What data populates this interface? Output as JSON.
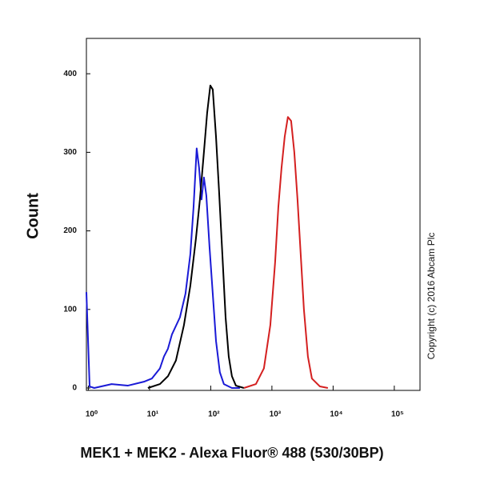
{
  "chart_data": {
    "type": "line",
    "x_label": "MEK1 + MEK2 - Alexa Fluor® 488 (530/30BP)",
    "y_label": "Count",
    "annotation": "Copyright (c) 2016 Abcam Plc",
    "x_scale": "log",
    "xlim": [
      0.93,
      263000
    ],
    "ylim": [
      0,
      445
    ],
    "xticks": [
      {
        "value": 1,
        "label": "10⁰"
      },
      {
        "value": 10,
        "label": "10¹"
      },
      {
        "value": 100,
        "label": "10²"
      },
      {
        "value": 1000,
        "label": "10³"
      },
      {
        "value": 10000,
        "label": "10⁴"
      },
      {
        "value": 100000,
        "label": "10⁵"
      }
    ],
    "yticks": [
      0,
      100,
      200,
      300,
      400
    ],
    "series": [
      {
        "color": "#1a1ad6",
        "x": [
          0.93,
          1.05,
          1.25,
          2.4,
          4.4,
          8.1,
          10.9,
          14.8,
          17.2,
          20,
          23.2,
          31.4,
          38.7,
          46.4,
          52.4,
          59,
          64.6,
          70.8,
          77.4,
          84.8,
          95.5,
          108,
          122,
          141,
          164,
          222,
          300
        ],
        "values": [
          122,
          2,
          0,
          5,
          3,
          8,
          12,
          25,
          40,
          50,
          68,
          90,
          120,
          170,
          230,
          305,
          280,
          240,
          268,
          245,
          180,
          120,
          60,
          20,
          5,
          0,
          0
        ]
      },
      {
        "color": "#000000",
        "x": [
          9.4,
          14.8,
          20,
          27,
          36.5,
          46.4,
          57.3,
          66.6,
          77.4,
          87.4,
          98.5,
          108,
          122,
          137,
          155,
          175,
          197,
          222,
          258,
          349
        ],
        "values": [
          0,
          5,
          15,
          35,
          80,
          130,
          190,
          240,
          300,
          350,
          385,
          380,
          320,
          250,
          170,
          90,
          40,
          15,
          3,
          0
        ]
      },
      {
        "color": "#d42020",
        "x": [
          349,
          548,
          740,
          942,
          1128,
          1273,
          1435,
          1619,
          1825,
          2059,
          2323,
          2620,
          2956,
          3334,
          3874,
          4505,
          6085,
          8219
        ],
        "values": [
          0,
          5,
          25,
          80,
          160,
          230,
          280,
          320,
          345,
          340,
          300,
          240,
          170,
          100,
          40,
          12,
          2,
          0
        ]
      }
    ]
  }
}
